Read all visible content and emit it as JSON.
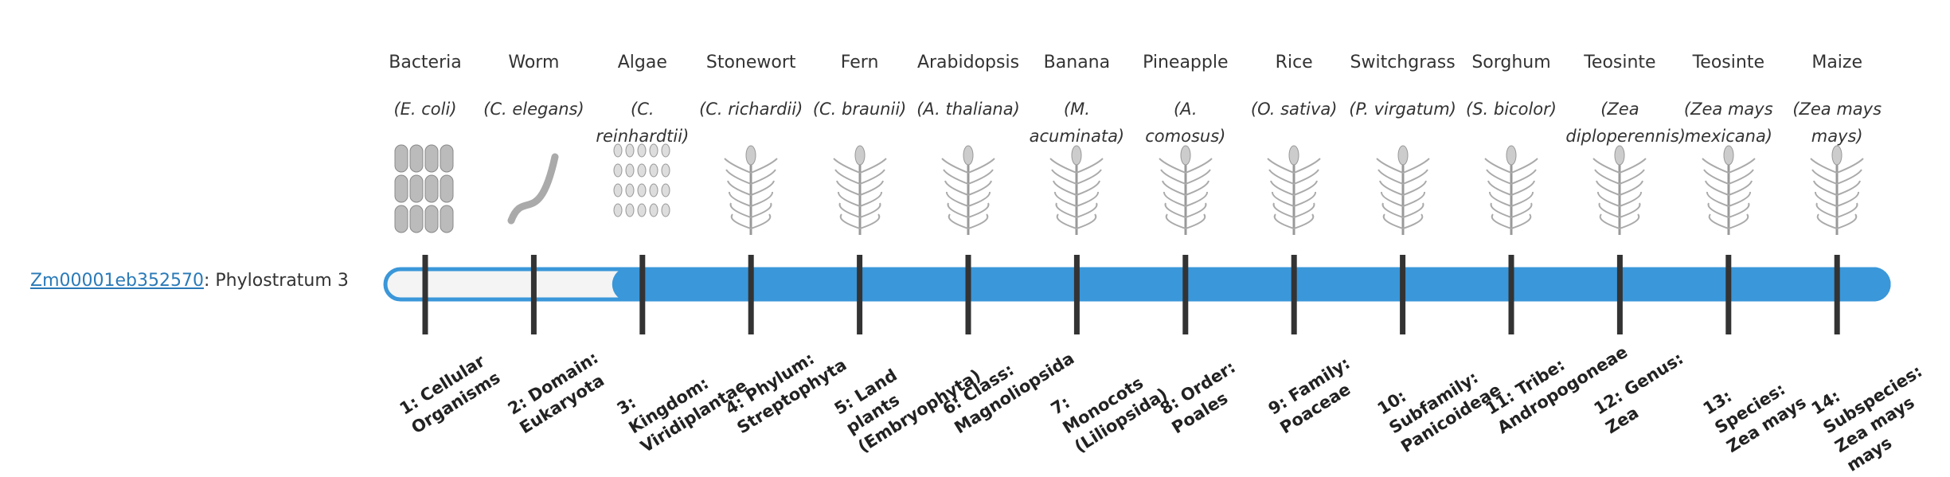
{
  "gene": {
    "id": "Zm00001eb352570",
    "status": ": Phylostratum",
    "phylostratum": 3
  },
  "organisms": [
    {
      "name": "Bacteria",
      "species": "(E. coli)",
      "stratum": "1: Cellular Organisms"
    },
    {
      "name": "Worm",
      "species": "(C. elegans)",
      "stratum": "2: Domain: Eukaryota"
    },
    {
      "name": "Algae",
      "species": "(C. reinhardtii)",
      "stratum": "3: Kingdom: Viridiplantae"
    },
    {
      "name": "Stonewort",
      "species": "(C. richardii)",
      "stratum": "4: Phylum: Streptophyta"
    },
    {
      "name": "Fern",
      "species": "(C. braunii)",
      "stratum": "5: Land plants (Embryophyta)"
    },
    {
      "name": "Arabidopsis",
      "species": "(A. thaliana)",
      "stratum": "6: Class: Magnoliopsida"
    },
    {
      "name": "Banana",
      "species": "(M. acuminata)",
      "stratum": "7: Monocots (Liliopsida)"
    },
    {
      "name": "Pineapple",
      "species": "(A. comosus)",
      "stratum": "8: Order: Poales"
    },
    {
      "name": "Rice",
      "species": "(O. sativa)",
      "stratum": "9: Family: Poaceae"
    },
    {
      "name": "Switchgrass",
      "species": "(P. virgatum)",
      "stratum": "10: Subfamily: Panicoideae"
    },
    {
      "name": "Sorghum",
      "species": "(S. bicolor)",
      "stratum": "11: Tribe: Andropogoneae"
    },
    {
      "name": "Teosinte",
      "species": "(Zea diploperennis)",
      "stratum": "12: Genus: Zea"
    },
    {
      "name": "Teosinte",
      "species": "(Zea mays mexicana)",
      "stratum": "13: Species: Zea mays"
    },
    {
      "name": "Maize",
      "species": "(Zea mays mays)",
      "stratum": "14: Subspecies: Zea mays mays"
    }
  ]
}
